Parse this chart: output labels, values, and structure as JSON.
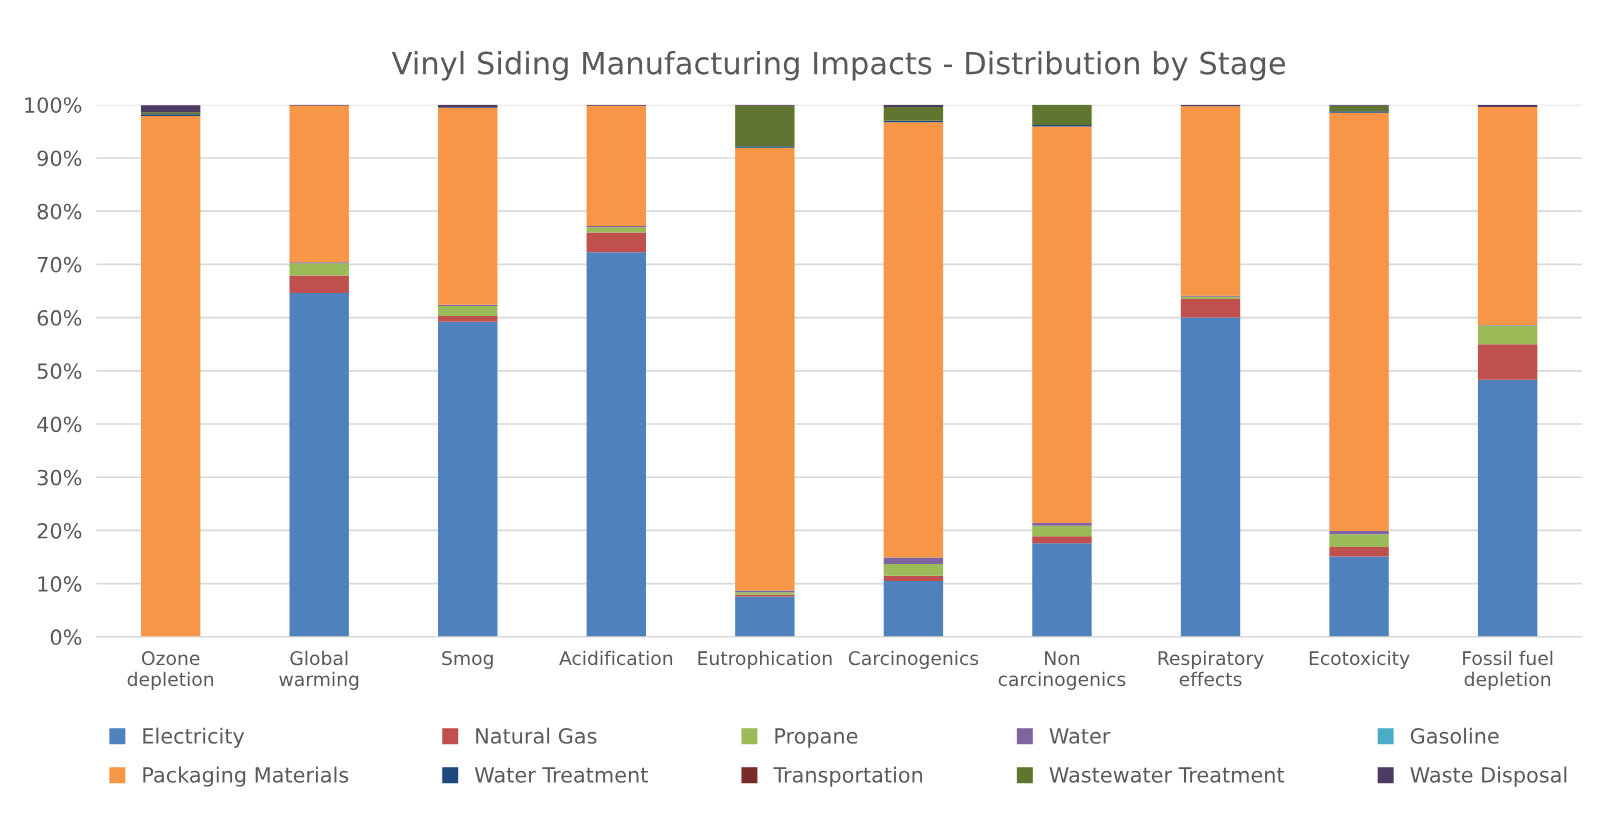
{
  "chart_data": {
    "type": "bar",
    "stacked": true,
    "title": "Vinyl Siding Manufacturing Impacts - Distribution by Stage",
    "categories": [
      "Ozone\ndepletion",
      "Global\nwarming",
      "Smog",
      "Acidification",
      "Eutrophication",
      "Carcinogenics",
      "Non\ncarcinogenics",
      "Respiratory\neffects",
      "Ecotoxicity",
      "Fossil fuel\ndepletion"
    ],
    "series": [
      {
        "name": "Electricity",
        "color": "#4f81bd",
        "values": [
          0,
          64.6,
          59.2,
          72.3,
          7.6,
          10.5,
          17.6,
          60.0,
          15.1,
          48.3
        ]
      },
      {
        "name": "Natural Gas",
        "color": "#c0504d",
        "values": [
          0,
          3.3,
          1.1,
          3.7,
          0.3,
          1.0,
          1.3,
          3.5,
          1.8,
          6.7
        ]
      },
      {
        "name": "Propane",
        "color": "#9bbb59",
        "values": [
          0,
          2.3,
          1.9,
          1.0,
          0.5,
          2.2,
          2.0,
          0.4,
          2.4,
          3.5
        ]
      },
      {
        "name": "Water",
        "color": "#8064a2",
        "values": [
          null,
          0.2,
          0.2,
          0.2,
          0.3,
          1.2,
          0.5,
          0.2,
          0.6,
          0.1
        ]
      },
      {
        "name": "Gasoline",
        "color": "#4bacc6",
        "values": [
          0,
          0,
          0,
          0,
          0,
          0,
          0,
          0,
          0,
          0
        ]
      },
      {
        "name": "Packaging Materials",
        "color": "#f79646",
        "values": [
          97.9,
          29.4,
          37.0,
          22.6,
          83.2,
          81.8,
          74.5,
          35.6,
          78.6,
          41.0
        ]
      },
      {
        "name": "Water Treatment",
        "color": "#1f497d",
        "values": [
          0.3,
          0,
          0.1,
          0,
          0.3,
          0.3,
          0.3,
          0,
          0.3,
          0
        ]
      },
      {
        "name": "Transportation",
        "color": "#772c2a",
        "values": [
          0,
          0.1,
          0,
          0,
          0,
          0,
          0,
          0,
          0,
          0
        ]
      },
      {
        "name": "Wastewater Treatment",
        "color": "#5f7530",
        "values": [
          0.4,
          0,
          0,
          0,
          7.6,
          2.6,
          3.8,
          0,
          1.0,
          0
        ]
      },
      {
        "name": "Waste Disposal",
        "color": "#4d3b62",
        "values": [
          1.3,
          0.1,
          0.5,
          0.2,
          0.2,
          0.4,
          0,
          0.3,
          0.2,
          0.4
        ]
      }
    ],
    "ylim": [
      0,
      100
    ],
    "yticks": [
      {
        "value": 0,
        "label": "0%"
      },
      {
        "value": 10,
        "label": "10%"
      },
      {
        "value": 20,
        "label": "20%"
      },
      {
        "value": 30,
        "label": "30%"
      },
      {
        "value": 40,
        "label": "40%"
      },
      {
        "value": 50,
        "label": "50%"
      },
      {
        "value": 60,
        "label": "60%"
      },
      {
        "value": 70,
        "label": "70%"
      },
      {
        "value": 80,
        "label": "80%"
      },
      {
        "value": 90,
        "label": "90%"
      },
      {
        "value": 100,
        "label": "100%"
      }
    ],
    "grid": "y",
    "legend": "bottom"
  }
}
